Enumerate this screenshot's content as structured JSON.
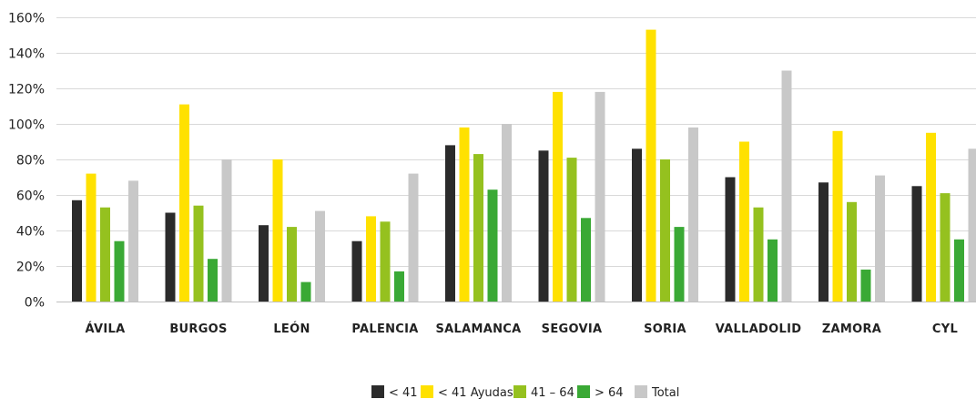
{
  "chart_data": {
    "type": "bar",
    "title": "",
    "xlabel": "",
    "ylabel": "",
    "ylim": [
      0,
      160
    ],
    "y_ticks": [
      "0%",
      "20%",
      "40%",
      "60%",
      "80%",
      "100%",
      "120%",
      "140%",
      "160%"
    ],
    "y_tick_values": [
      0,
      20,
      40,
      60,
      80,
      100,
      120,
      140,
      160
    ],
    "grid": true,
    "legend_position": "bottom-center",
    "categories": [
      "ÁVILA",
      "BURGOS",
      "LEÓN",
      "PALENCIA",
      "SALAMANCA",
      "SEGOVIA",
      "SORIA",
      "VALLADOLID",
      "ZAMORA",
      "CYL"
    ],
    "series": [
      {
        "name": "< 41",
        "color": "#2b2b2b",
        "values": [
          57,
          50,
          43,
          34,
          88,
          85,
          86,
          70,
          67,
          65
        ]
      },
      {
        "name": "< 41 Ayudas",
        "color": "#ffe100",
        "values": [
          72,
          111,
          80,
          48,
          98,
          118,
          153,
          90,
          96,
          95
        ]
      },
      {
        "name": "41 – 64",
        "color": "#95c11f",
        "values": [
          53,
          54,
          42,
          45,
          83,
          81,
          80,
          53,
          56,
          61
        ]
      },
      {
        "name": "> 64",
        "color": "#3aa935",
        "values": [
          34,
          24,
          11,
          17,
          63,
          47,
          42,
          35,
          18,
          35
        ]
      },
      {
        "name": "Total",
        "color": "#c8c8c8",
        "values": [
          68,
          80,
          51,
          72,
          100,
          118,
          98,
          130,
          71,
          86
        ]
      }
    ]
  }
}
